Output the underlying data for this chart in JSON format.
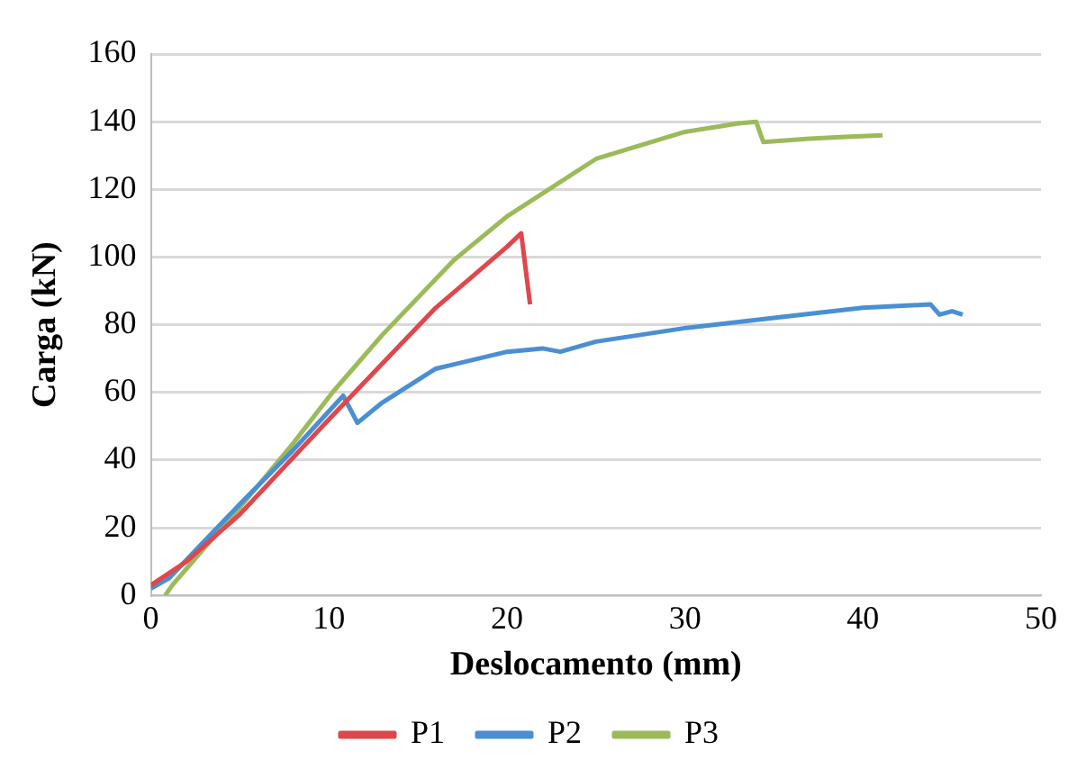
{
  "chart_data": {
    "type": "line",
    "xlabel": "Deslocamento (mm)",
    "ylabel": "Carga (kN)",
    "xlim": [
      0,
      50
    ],
    "xticks": [
      0,
      10,
      20,
      30,
      40,
      50
    ],
    "ylim": [
      0,
      160
    ],
    "yticks": [
      0,
      20,
      40,
      60,
      80,
      100,
      120,
      140,
      160
    ],
    "grid": "y",
    "legend": "bottom",
    "marker": "none",
    "line_style": "solid",
    "series": [
      {
        "name": "P1",
        "color": "#e0474c",
        "x": [
          0,
          2,
          5,
          10,
          16,
          20,
          20.8,
          21.3
        ],
        "values": [
          3,
          10,
          24,
          52,
          85,
          103,
          107,
          86
        ]
      },
      {
        "name": "P2",
        "color": "#4a8fd4",
        "x": [
          0,
          1,
          3,
          5,
          8,
          10.8,
          11.6,
          13,
          16,
          20,
          22,
          23,
          25,
          30,
          35,
          40,
          43.8,
          44.3,
          45,
          45.6
        ],
        "values": [
          2,
          5,
          16,
          27,
          43,
          59,
          51,
          57,
          67,
          72,
          73,
          72,
          75,
          79,
          82,
          85,
          86,
          83,
          84,
          83
        ]
      },
      {
        "name": "P3",
        "color": "#9bbb59",
        "x": [
          0.8,
          1.2,
          3,
          5,
          8,
          10.2,
          13,
          17,
          20,
          25,
          30,
          33,
          34,
          34.4,
          37,
          39,
          41.1
        ],
        "values": [
          0,
          3,
          14,
          26,
          45,
          60,
          77,
          99,
          112,
          129,
          137,
          139.5,
          140,
          134,
          135,
          135.5,
          136
        ]
      }
    ]
  }
}
